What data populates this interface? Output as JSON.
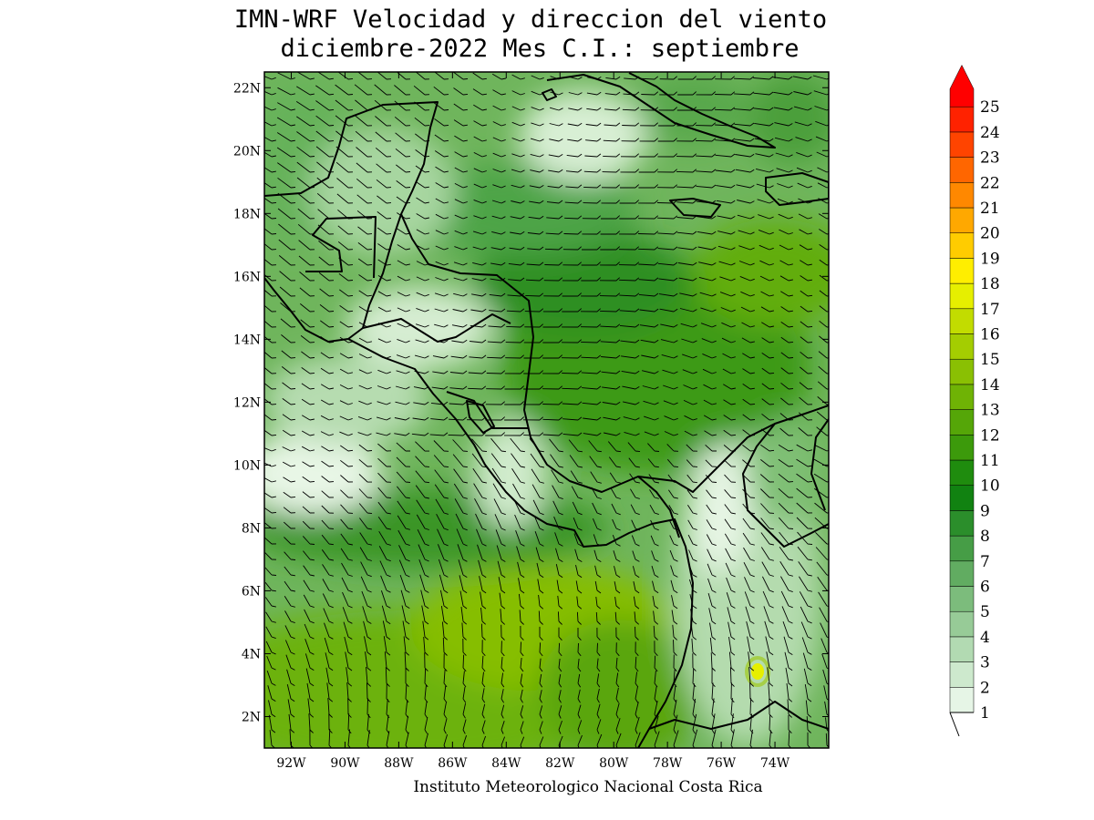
{
  "title": {
    "line1": "IMN-WRF Velocidad y direccion del viento",
    "line2": "diciembre-2022 Mes C.I.: septiembre"
  },
  "credit": "Instituto Meteorologico Nacional Costa Rica",
  "map": {
    "lon_range": [
      -93.0,
      -72.0
    ],
    "lat_range": [
      1.0,
      22.5
    ],
    "lon_ticks": [
      {
        "value": -92,
        "label": "92W"
      },
      {
        "value": -90,
        "label": "90W"
      },
      {
        "value": -88,
        "label": "88W"
      },
      {
        "value": -86,
        "label": "86W"
      },
      {
        "value": -84,
        "label": "84W"
      },
      {
        "value": -82,
        "label": "82W"
      },
      {
        "value": -80,
        "label": "80W"
      },
      {
        "value": -78,
        "label": "78W"
      },
      {
        "value": -76,
        "label": "76W"
      },
      {
        "value": -74,
        "label": "74W"
      }
    ],
    "lat_ticks": [
      {
        "value": 2,
        "label": "2N"
      },
      {
        "value": 4,
        "label": "4N"
      },
      {
        "value": 6,
        "label": "6N"
      },
      {
        "value": 8,
        "label": "8N"
      },
      {
        "value": 10,
        "label": "10N"
      },
      {
        "value": 12,
        "label": "12N"
      },
      {
        "value": 14,
        "label": "14N"
      },
      {
        "value": 16,
        "label": "16N"
      },
      {
        "value": 18,
        "label": "18N"
      },
      {
        "value": 20,
        "label": "20N"
      },
      {
        "value": 22,
        "label": "22N"
      }
    ]
  },
  "colorbar": {
    "levels": [
      "1",
      "2",
      "3",
      "4",
      "5",
      "6",
      "7",
      "8",
      "9",
      "10",
      "11",
      "12",
      "13",
      "14",
      "15",
      "16",
      "17",
      "18",
      "19",
      "20",
      "21",
      "22",
      "23",
      "24",
      "25"
    ],
    "colors": [
      "#e6f5e6",
      "#cde9cd",
      "#b2dab2",
      "#97cb97",
      "#7cbc7c",
      "#61ac61",
      "#469d46",
      "#2b8e2b",
      "#118211",
      "#1f8c0e",
      "#3c9a0b",
      "#55a608",
      "#6fb305",
      "#8ac003",
      "#a4cd01",
      "#c2dc00",
      "#e6ef00",
      "#ffee00",
      "#ffcc00",
      "#ffa800",
      "#ff8800",
      "#ff6600",
      "#ff4400",
      "#ff2200",
      "#ff0000"
    ]
  },
  "chart_data": {
    "type": "heatmap",
    "variable": "wind speed and direction",
    "speed_hotspots": [
      {
        "lon": -83.5,
        "lat": 4.0,
        "speed": 13
      },
      {
        "lon": -75.0,
        "lat": 3.3,
        "speed": 17
      },
      {
        "lon": -81.0,
        "lat": 13.0,
        "speed": 10
      },
      {
        "lon": -74.0,
        "lat": 16.0,
        "speed": 12
      },
      {
        "lon": -91.5,
        "lat": 2.5,
        "speed": 12
      }
    ],
    "calm_zones": [
      {
        "lon": -92.5,
        "lat": 9.8,
        "speed": 1
      },
      {
        "lon": -83.0,
        "lat": 21.0,
        "speed": 1
      }
    ]
  }
}
